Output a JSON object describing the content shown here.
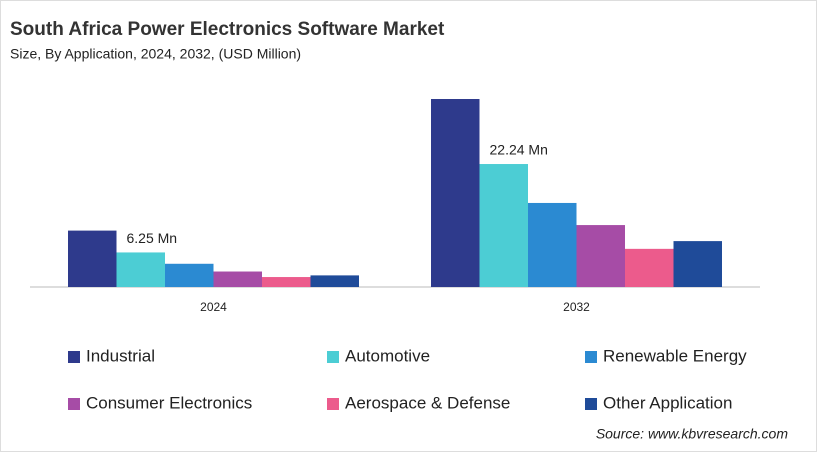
{
  "chart_data": {
    "type": "bar",
    "title": "South Africa Power Electronics Software Market",
    "subtitle": "Size, By Application, 2024, 2032, (USD Million)",
    "source": "Source: www.kbvresearch.com",
    "categories": [
      "2024",
      "2032"
    ],
    "series": [
      {
        "name": "Industrial",
        "color": "#2e3a8c",
        "values": [
          10.2,
          34.0
        ]
      },
      {
        "name": "Automotive",
        "color": "#4ccdd4",
        "values": [
          6.25,
          22.24
        ],
        "value_labels": [
          "6.25 Mn",
          "22.24 Mn"
        ]
      },
      {
        "name": "Renewable Energy",
        "color": "#2b8ad2",
        "values": [
          4.2,
          15.2
        ]
      },
      {
        "name": "Consumer Electronics",
        "color": "#a64ca6",
        "values": [
          2.8,
          11.2
        ]
      },
      {
        "name": "Aerospace & Defense",
        "color": "#ec5b8c",
        "values": [
          1.8,
          6.9
        ]
      },
      {
        "name": "Other Application",
        "color": "#1f4b99",
        "values": [
          2.1,
          8.3
        ]
      }
    ]
  }
}
